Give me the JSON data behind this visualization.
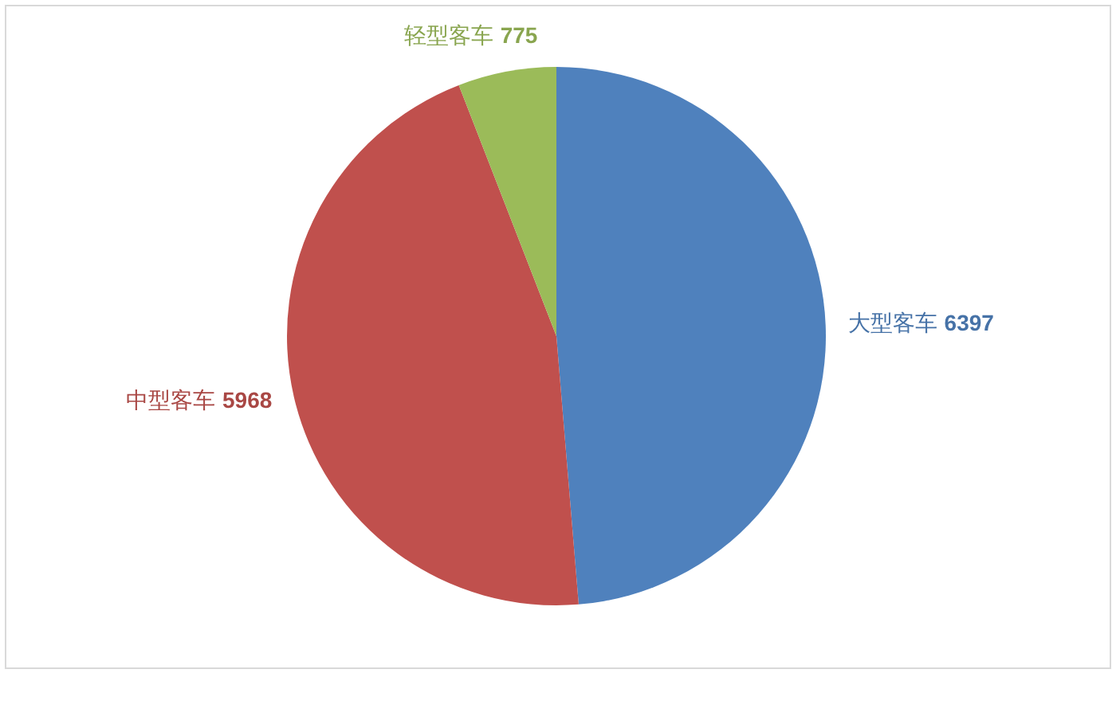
{
  "chart_data": {
    "type": "pie",
    "categories": [
      "大型客车",
      "中型客车",
      "轻型客车"
    ],
    "values": [
      6397,
      5968,
      775
    ],
    "colors": [
      "#4f81bd",
      "#c0504d",
      "#9bbb59"
    ],
    "data_labels": true
  }
}
